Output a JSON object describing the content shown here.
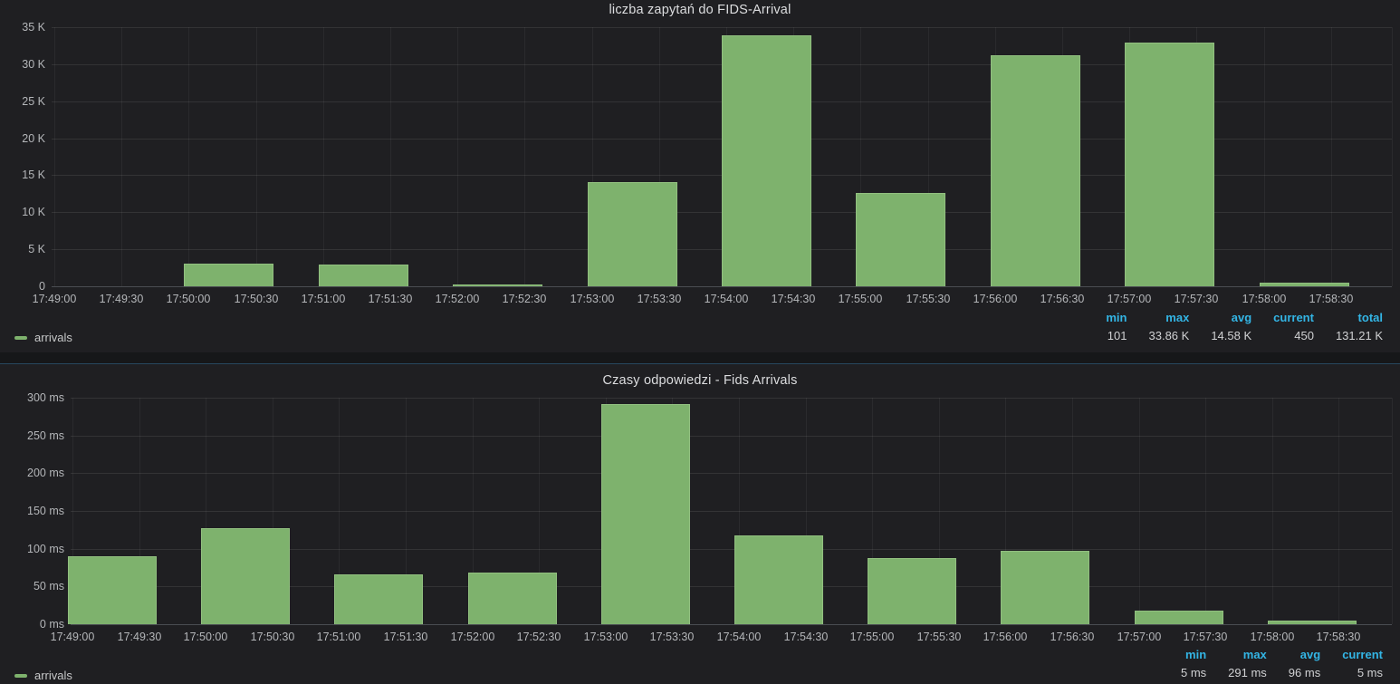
{
  "page": {
    "background": "#161719",
    "panel_background": "#1f1f22"
  },
  "colors": {
    "series_green": "#7eb26d",
    "series_green_border": "#92c080",
    "stat_header_blue": "#33b5e5",
    "axis_text": "#b4b6b9",
    "title_text": "#dcdddf"
  },
  "chart_data": [
    {
      "type": "bar",
      "title": "liczba zapytań do FIDS-Arrival",
      "series_name": "arrivals",
      "categories": [
        "17:49",
        "17:50",
        "17:51",
        "17:52",
        "17:53",
        "17:54",
        "17:55",
        "17:56",
        "17:57",
        "17:58"
      ],
      "values": [
        null,
        3050,
        2980,
        101,
        14050,
        33860,
        12650,
        31200,
        32870,
        450
      ],
      "ylim": [
        0,
        35000
      ],
      "y_tick_labels": [
        "0",
        "5 K",
        "10 K",
        "15 K",
        "20 K",
        "25 K",
        "30 K",
        "35 K"
      ],
      "x_tick_labels": [
        "17:49:00",
        "17:49:30",
        "17:50:00",
        "17:50:30",
        "17:51:00",
        "17:51:30",
        "17:52:00",
        "17:52:30",
        "17:53:00",
        "17:53:30",
        "17:54:00",
        "17:54:30",
        "17:55:00",
        "17:55:30",
        "17:56:00",
        "17:56:30",
        "17:57:00",
        "17:57:30",
        "17:58:00",
        "17:58:30"
      ],
      "grid": true,
      "legend_position": "bottom",
      "legend": {
        "series_label": "arrivals",
        "stats": [
          {
            "label": "min",
            "value": "101"
          },
          {
            "label": "max",
            "value": "33.86 K"
          },
          {
            "label": "avg",
            "value": "14.58 K"
          },
          {
            "label": "current",
            "value": "450"
          },
          {
            "label": "total",
            "value": "131.21 K"
          }
        ]
      }
    },
    {
      "type": "bar",
      "title": "Czasy odpowiedzi - Fids Arrivals",
      "series_name": "arrivals",
      "categories": [
        "17:49",
        "17:50",
        "17:51",
        "17:52",
        "17:53",
        "17:54",
        "17:55",
        "17:56",
        "17:57",
        "17:58"
      ],
      "values": [
        90,
        127,
        66,
        68,
        291,
        118,
        87,
        97,
        18,
        5
      ],
      "ylim": [
        0,
        300
      ],
      "y_tick_labels": [
        "0 ms",
        "50 ms",
        "100 ms",
        "150 ms",
        "200 ms",
        "250 ms",
        "300 ms"
      ],
      "x_tick_labels": [
        "17:49:00",
        "17:49:30",
        "17:50:00",
        "17:50:30",
        "17:51:00",
        "17:51:30",
        "17:52:00",
        "17:52:30",
        "17:53:00",
        "17:53:30",
        "17:54:00",
        "17:54:30",
        "17:55:00",
        "17:55:30",
        "17:56:00",
        "17:56:30",
        "17:57:00",
        "17:57:30",
        "17:58:00",
        "17:58:30"
      ],
      "grid": true,
      "legend_position": "bottom",
      "legend": {
        "series_label": "arrivals",
        "stats": [
          {
            "label": "min",
            "value": "5 ms"
          },
          {
            "label": "max",
            "value": "291 ms"
          },
          {
            "label": "avg",
            "value": "96 ms"
          },
          {
            "label": "current",
            "value": "5 ms"
          }
        ]
      }
    }
  ]
}
